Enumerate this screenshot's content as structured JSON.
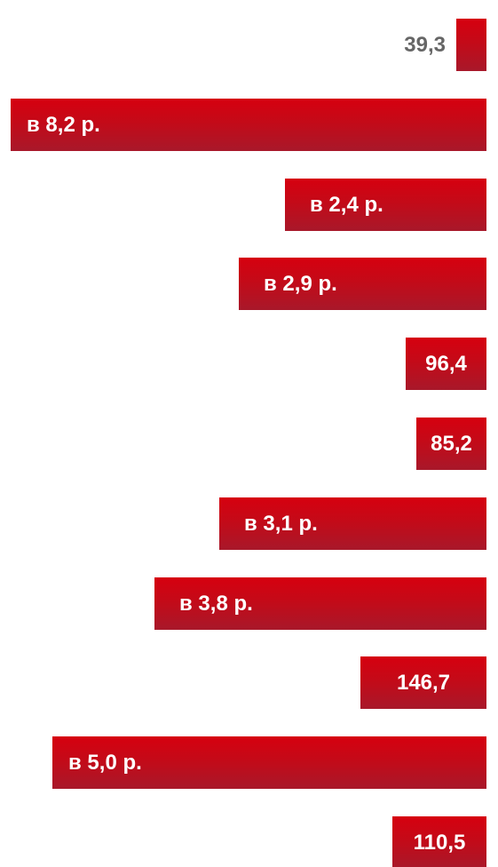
{
  "chart_data": {
    "type": "bar",
    "orientation": "horizontal",
    "bar_color": "#c40a18",
    "bar_color_top": "#d6000f",
    "bar_color_bottom": "#a8182a",
    "outside_label_color": "#666666",
    "inside_label_color": "#ffffff",
    "bars": [
      {
        "label": "39,3",
        "relative": 0.063
      },
      {
        "label": "в 8,2 р.",
        "relative": 1.0
      },
      {
        "label": "в 2,4 р.",
        "relative": 0.424
      },
      {
        "label": "в 2,9 р.",
        "relative": 0.52
      },
      {
        "label": "96,4",
        "relative": 0.169
      },
      {
        "label": "85,2",
        "relative": 0.148
      },
      {
        "label": "в 3,1 р.",
        "relative": 0.562
      },
      {
        "label": "в 3,8 р.",
        "relative": 0.697
      },
      {
        "label": "146,7",
        "relative": 0.264
      },
      {
        "label": "в 5,0 р.",
        "relative": 0.912
      },
      {
        "label": "110,5",
        "relative": 0.198
      }
    ]
  }
}
